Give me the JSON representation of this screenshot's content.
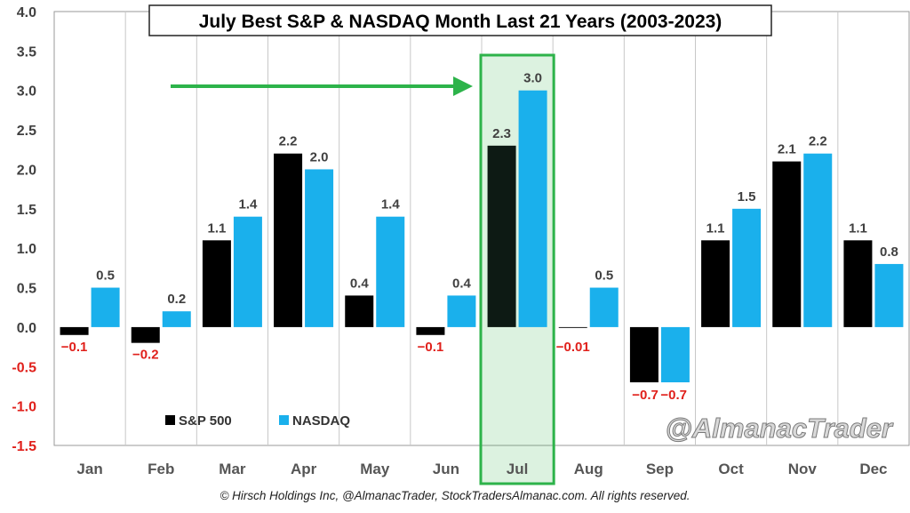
{
  "chart_data": {
    "type": "bar",
    "title": "July Best S&P & NASDAQ Month Last 21 Years (2003-2023)",
    "categories": [
      "Jan",
      "Feb",
      "Mar",
      "Apr",
      "May",
      "Jun",
      "Jul",
      "Aug",
      "Sep",
      "Oct",
      "Nov",
      "Dec"
    ],
    "series": [
      {
        "name": "S&P 500",
        "color": "#000000",
        "values": [
          -0.1,
          -0.2,
          1.1,
          2.2,
          0.4,
          -0.1,
          2.3,
          -0.01,
          -0.7,
          1.1,
          2.1,
          1.1
        ],
        "labels": [
          "−0.1",
          "−0.2",
          "1.1",
          "2.2",
          "0.4",
          "−0.1",
          "2.3",
          "−0.01",
          "−0.7",
          "1.1",
          "2.1",
          "1.1"
        ]
      },
      {
        "name": "NASDAQ",
        "color": "#1ab0ec",
        "values": [
          0.5,
          0.2,
          1.4,
          2.0,
          1.4,
          0.4,
          3.0,
          0.5,
          -0.7,
          1.5,
          2.2,
          0.8
        ],
        "labels": [
          "0.5",
          "0.2",
          "1.4",
          "2.0",
          "1.4",
          "0.4",
          "3.0",
          "0.5",
          "",
          "1.5",
          "2.2",
          "0.8"
        ]
      }
    ],
    "yticks": [
      "4.0",
      "3.5",
      "3.0",
      "2.5",
      "2.0",
      "1.5",
      "1.0",
      "0.5",
      "0.0",
      "-0.5",
      "-1.0",
      "-1.5"
    ],
    "ylim": [
      -1.5,
      4.0
    ],
    "highlight_category": "Jul",
    "highlight_color": "#2db34a",
    "negative_label_color": "#e0201b",
    "legend_position": "bottom-left",
    "grid": false
  },
  "watermark": "@AlmanacTrader",
  "credit": "© Hirsch Holdings Inc, @AlmanacTrader, StockTradersAlmanac.com. All rights reserved."
}
